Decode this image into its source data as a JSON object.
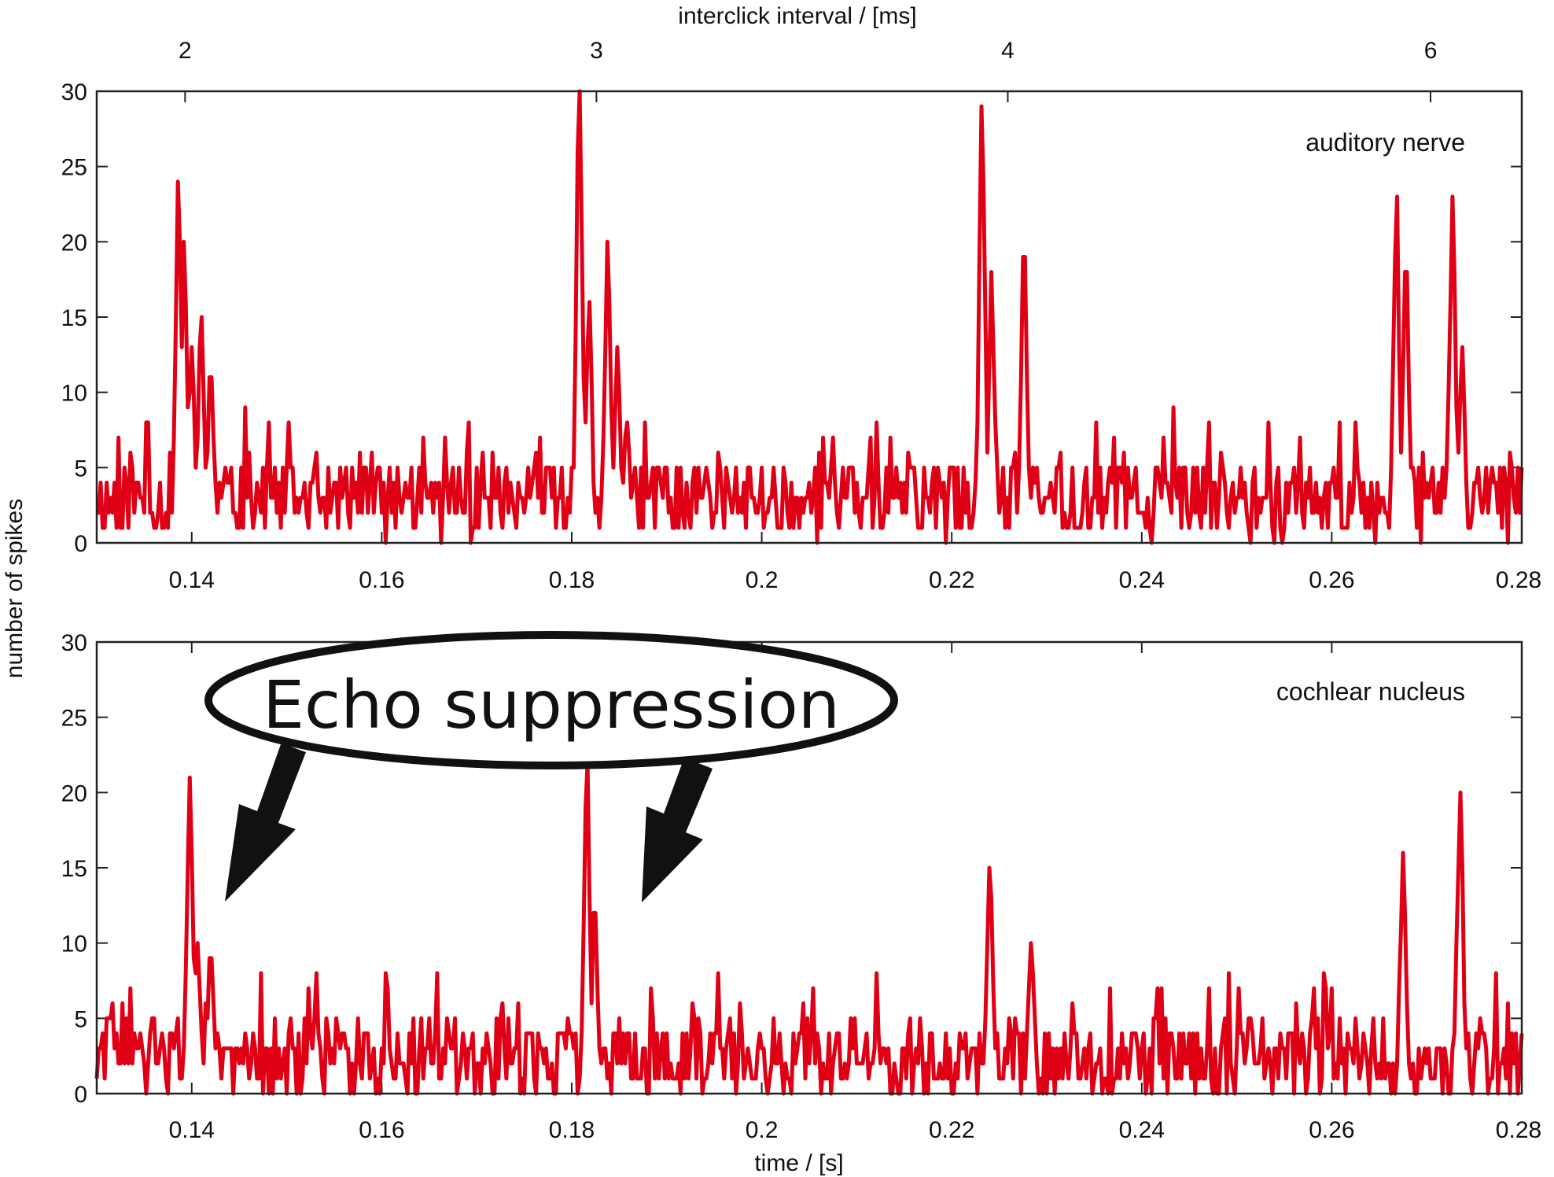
{
  "chart_data": [
    {
      "type": "line",
      "panel_label": "auditory nerve",
      "xlabel": "",
      "ylabel": "",
      "xlim": [
        0.13,
        0.28
      ],
      "ylim": [
        0,
        30
      ],
      "x_ticks": [
        0.14,
        0.16,
        0.18,
        0.2,
        0.22,
        0.24,
        0.26,
        0.28
      ],
      "x_tick_labels": [
        "0.14",
        "0.16",
        "0.18",
        "0.2",
        "0.22",
        "0.24",
        "0.26",
        "0.28"
      ],
      "y_ticks": [
        0,
        5,
        10,
        15,
        20,
        25,
        30
      ],
      "y_tick_labels": [
        "0",
        "5",
        "10",
        "15",
        "20",
        "25",
        "30"
      ],
      "top_axis": {
        "label": "interclick interval / [ms]",
        "ticks": [
          {
            "x": 0.1393,
            "label": "2"
          },
          {
            "x": 0.1826,
            "label": "3"
          },
          {
            "x": 0.2259,
            "label": "4"
          },
          {
            "x": 0.2704,
            "label": "6"
          }
        ]
      },
      "baseline": 2.6,
      "peaks": [
        {
          "x": 0.1386,
          "y": 24
        },
        {
          "x": 0.1392,
          "y": 20
        },
        {
          "x": 0.14,
          "y": 13
        },
        {
          "x": 0.141,
          "y": 15
        },
        {
          "x": 0.142,
          "y": 11
        },
        {
          "x": 0.1808,
          "y": 30
        },
        {
          "x": 0.1818,
          "y": 16
        },
        {
          "x": 0.1838,
          "y": 20
        },
        {
          "x": 0.1848,
          "y": 13
        },
        {
          "x": 0.1858,
          "y": 8
        },
        {
          "x": 0.2232,
          "y": 29
        },
        {
          "x": 0.2242,
          "y": 18
        },
        {
          "x": 0.2276,
          "y": 19
        },
        {
          "x": 0.2668,
          "y": 23
        },
        {
          "x": 0.2678,
          "y": 18
        },
        {
          "x": 0.2727,
          "y": 23
        },
        {
          "x": 0.2737,
          "y": 13
        }
      ],
      "color": "#e00016"
    },
    {
      "type": "line",
      "panel_label": "cochlear nucleus",
      "xlabel": "time / [s]",
      "ylabel": "number of spikes",
      "xlim": [
        0.13,
        0.28
      ],
      "ylim": [
        0,
        30
      ],
      "x_ticks": [
        0.14,
        0.16,
        0.18,
        0.2,
        0.22,
        0.24,
        0.26,
        0.28
      ],
      "x_tick_labels": [
        "0.14",
        "0.16",
        "0.18",
        "0.2",
        "0.22",
        "0.24",
        "0.26",
        "0.28"
      ],
      "y_ticks": [
        0,
        5,
        10,
        15,
        20,
        25,
        30
      ],
      "y_tick_labels": [
        "0",
        "5",
        "10",
        "15",
        "20",
        "25",
        "30"
      ],
      "baseline": 2.0,
      "peaks": [
        {
          "x": 0.1398,
          "y": 21
        },
        {
          "x": 0.1406,
          "y": 10
        },
        {
          "x": 0.142,
          "y": 9
        },
        {
          "x": 0.1816,
          "y": 22
        },
        {
          "x": 0.1824,
          "y": 12
        },
        {
          "x": 0.224,
          "y": 15
        },
        {
          "x": 0.2284,
          "y": 10
        },
        {
          "x": 0.2675,
          "y": 16
        },
        {
          "x": 0.2735,
          "y": 20
        }
      ],
      "color": "#e00016"
    }
  ],
  "annotation": {
    "text": "Echo suppression"
  }
}
